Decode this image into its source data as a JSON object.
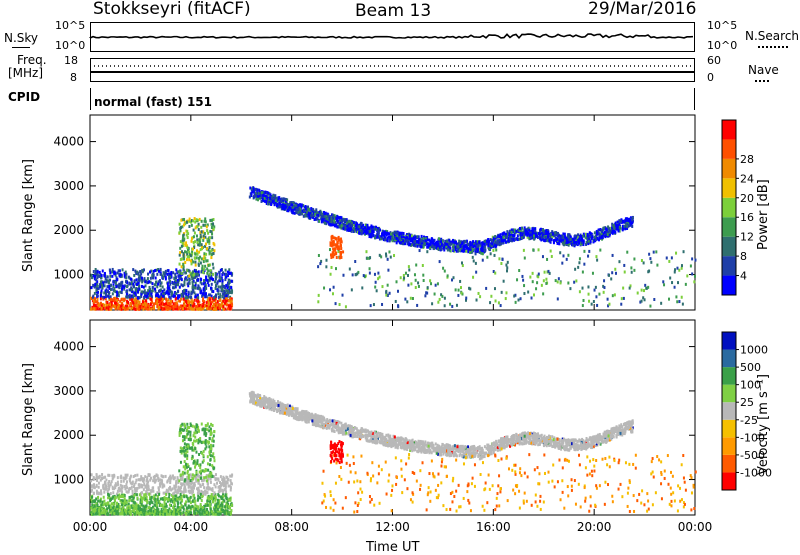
{
  "header": {
    "station": "Stokkseyri (fitACF)",
    "beam": "Beam 13",
    "date": "29/Mar/2016"
  },
  "top_panel": {
    "left_label": "N.Sky",
    "right_label": "N.Search",
    "left_ticks": [
      "10^5",
      "10^0"
    ],
    "right_ticks": [
      "10^5",
      "10^0"
    ]
  },
  "freq_panel": {
    "left_label_1": "Freq.",
    "left_label_2": "[MHz]",
    "right_label": "Nave",
    "left_ticks": [
      "18",
      "8"
    ],
    "right_ticks": [
      "60",
      "0"
    ]
  },
  "cpid": {
    "label": "CPID",
    "value": "normal (fast) 151"
  },
  "colors": {
    "power": [
      "#0000ff",
      "#1f3fa8",
      "#2f6f6f",
      "#3d9c4f",
      "#7ccf3a",
      "#f0c000",
      "#f08a00",
      "#ff5000",
      "#ff0000"
    ],
    "velocity": [
      "#ff0000",
      "#ff5a00",
      "#ff9a00",
      "#f5c000",
      "#b8b8b8",
      "#7fd044",
      "#3aa048",
      "#2a6aa0",
      "#0010c0"
    ]
  },
  "chart_data": [
    {
      "type": "heatmap",
      "title": "",
      "xlabel": "",
      "ylabel": "Slant Range [km]",
      "x_ticks": [
        "00:00",
        "04:00",
        "08:00",
        "12:00",
        "16:00",
        "20:00",
        "00:00"
      ],
      "y_ticks": [
        "1000",
        "2000",
        "3000",
        "4000"
      ],
      "ylim": [
        200,
        4600
      ],
      "colorbar": {
        "label": "Power [dB]",
        "ticks": [
          "4",
          "8",
          "12",
          "16",
          "20",
          "24",
          "28"
        ],
        "range": [
          0,
          30
        ]
      },
      "features": [
        {
          "name": "near range echoes",
          "t_start_h": 0.0,
          "t_end_h": 5.5,
          "range_km": [
            250,
            1100
          ],
          "value": 24
        },
        {
          "name": "arc",
          "t_start_h": 6.3,
          "t_end_h": 21.5,
          "range_km": [
            1600,
            3000
          ],
          "value": 10
        }
      ]
    },
    {
      "type": "heatmap",
      "title": "",
      "xlabel": "Time UT",
      "ylabel": "Slant Range [km]",
      "x_ticks": [
        "00:00",
        "04:00",
        "08:00",
        "12:00",
        "16:00",
        "20:00",
        "00:00"
      ],
      "y_ticks": [
        "1000",
        "2000",
        "3000",
        "4000"
      ],
      "ylim": [
        200,
        4600
      ],
      "colorbar": {
        "label": "Velocity [m s⁻¹]",
        "ticks": [
          "1000",
          "500",
          "100",
          "25",
          "-25",
          "-100",
          "-500",
          "-1000"
        ],
        "range": [
          -1000,
          1000
        ]
      },
      "features": [
        {
          "name": "near range echoes",
          "t_start_h": 0.0,
          "t_end_h": 5.5,
          "range_km": [
            250,
            1100
          ],
          "value": 50
        },
        {
          "name": "arc",
          "t_start_h": 6.3,
          "t_end_h": 21.5,
          "range_km": [
            1600,
            3000
          ],
          "value": 0
        }
      ]
    }
  ]
}
